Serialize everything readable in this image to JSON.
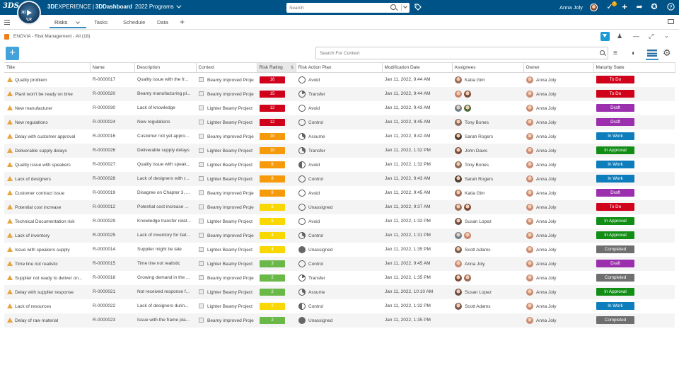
{
  "topbar": {
    "logo": "3DS",
    "compass_3d": "3D",
    "compass_v_r": "V,R",
    "brand_bold_1": "3D",
    "brand_rest_1": "EXPERIENCE",
    "brand_sep": "|",
    "brand_bold_2": "3DDashboard",
    "program": "2022 Programs",
    "search_placeholder": "Search",
    "user_name": "Anna Joly",
    "notif_count": "1"
  },
  "tabs": {
    "risks": "Risks",
    "tasks": "Tasks",
    "schedule": "Schedule",
    "data": "Data",
    "add": "+"
  },
  "widget": {
    "title": "ENOVIA - Risk Management - All (18)"
  },
  "toolbar": {
    "add_label": "+",
    "context_search_placeholder": "Search For Context"
  },
  "columns": {
    "title": "Title",
    "name": "Name",
    "description": "Description",
    "context": "Context",
    "rating": "Risk Rating",
    "plan": "Risk Action Plan",
    "modified": "Modification Date",
    "assignees": "Assignees",
    "owner": "Owner",
    "state": "Maturity State"
  },
  "colors": {
    "rating_red": "#d0021b",
    "rating_orange": "#f59a0a",
    "rating_yellow": "#f8d800",
    "rating_green": "#6ab847",
    "state_todo": "#d0021b",
    "state_draft": "#9b2fae",
    "state_inwork": "#0d7dbb",
    "state_approval": "#128e16",
    "state_completed": "#6f6f6f"
  },
  "rows": [
    {
      "title": "Quality problem",
      "name": "R-0000017",
      "description": "Quality issue with the fr...",
      "context": "Beamy improved Proje",
      "rating": "16",
      "rating_color": "#d0021b",
      "plan": "Avoid",
      "plan_icon": "avoid",
      "modified": "Jan 11, 2022, 9:44 AM",
      "assignees": [
        {
          "color": "#9c6b56"
        }
      ],
      "assignee_name": "Katia Gim",
      "owner": "Anna Joly",
      "state": "To Do",
      "state_color": "#d0021b"
    },
    {
      "title": "Plant won't be ready on time",
      "name": "R-0000020",
      "description": "Beamy manufacturing pl...",
      "context": "Beamy improved Proje",
      "rating": "15",
      "rating_color": "#d0021b",
      "plan": "Transfer",
      "plan_icon": "transfer",
      "modified": "Jan 11, 2022, 9:44 AM",
      "assignees": [
        {
          "color": "#c9856b"
        },
        {
          "color": "#7b4b3a"
        }
      ],
      "assignee_name": "",
      "owner": "Anna Joly",
      "state": "To Do",
      "state_color": "#d0021b"
    },
    {
      "title": "New manufacturer",
      "name": "R-0000030",
      "description": "Lack of knowledge",
      "context": "Lighter Beamy Project",
      "rating": "12",
      "rating_color": "#d0021b",
      "plan": "Avoid",
      "plan_icon": "avoid",
      "modified": "Jan 11, 2022, 9:43 AM",
      "assignees": [
        {
          "color": "#6d7f8c"
        },
        {
          "color": "#4b6b3a"
        }
      ],
      "assignee_name": "",
      "owner": "Anna Joly",
      "state": "Draft",
      "state_color": "#9b2fae"
    },
    {
      "title": "New regulations",
      "name": "R-0000024",
      "description": "New regulations",
      "context": "Lighter Beamy Project",
      "rating": "12",
      "rating_color": "#d0021b",
      "plan": "Control",
      "plan_icon": "avoid",
      "modified": "Jan 11, 2022, 9:45 AM",
      "assignees": [
        {
          "color": "#8a6a5a"
        }
      ],
      "assignee_name": "Tony Bones",
      "owner": "Anna Joly",
      "state": "Draft",
      "state_color": "#9b2fae"
    },
    {
      "title": "Delay with customer approval",
      "name": "R-0000016",
      "description": "Customer not yet appro...",
      "context": "Beamy improved Proje",
      "rating": "10",
      "rating_color": "#f59a0a",
      "plan": "Assume",
      "plan_icon": "assume",
      "modified": "Jan 11, 2022, 9:42 AM",
      "assignees": [
        {
          "color": "#4a3a2f"
        }
      ],
      "assignee_name": "Sarah Rogers",
      "owner": "Anna Joly",
      "state": "In Work",
      "state_color": "#0d7dbb"
    },
    {
      "title": "Deliverable supply delays",
      "name": "R-0000026",
      "description": "Deliverable supply delays",
      "context": "Lighter Beamy Project",
      "rating": "10",
      "rating_color": "#f59a0a",
      "plan": "Transfer",
      "plan_icon": "assume",
      "modified": "Jan 11, 2022, 1:32 PM",
      "assignees": [
        {
          "color": "#7a4e3c"
        }
      ],
      "assignee_name": "John Davis",
      "owner": "Anna Joly",
      "state": "In Approval",
      "state_color": "#128e16"
    },
    {
      "title": "Quality issue with speakers",
      "name": "R-0000027",
      "description": "Quality issue with speak...",
      "context": "Lighter Beamy Project",
      "rating": "8",
      "rating_color": "#f59a0a",
      "plan": "Avoid",
      "plan_icon": "control",
      "modified": "Jan 11, 2022, 1:32 PM",
      "assignees": [
        {
          "color": "#8a6a5a"
        }
      ],
      "assignee_name": "Tony Bones",
      "owner": "Anna Joly",
      "state": "In Work",
      "state_color": "#0d7dbb"
    },
    {
      "title": "Lack of designers",
      "name": "R-0000028",
      "description": "Lack of designers with r...",
      "context": "Lighter Beamy Project",
      "rating": "8",
      "rating_color": "#f59a0a",
      "plan": "Control",
      "plan_icon": "avoid",
      "modified": "Jan 11, 2022, 9:43 AM",
      "assignees": [
        {
          "color": "#4a3a2f"
        }
      ],
      "assignee_name": "Sarah Rogers",
      "owner": "Anna Joly",
      "state": "In Work",
      "state_color": "#0d7dbb"
    },
    {
      "title": "Customer contract issue",
      "name": "R-0000019",
      "description": "Disagree on Chapter 3, ...",
      "context": "Beamy improved Proje",
      "rating": "8",
      "rating_color": "#f59a0a",
      "plan": "Avoid",
      "plan_icon": "avoid",
      "modified": "Jan 11, 2022, 9:45 AM",
      "assignees": [
        {
          "color": "#9c6b56"
        }
      ],
      "assignee_name": "Katia Gim",
      "owner": "Anna Joly",
      "state": "Draft",
      "state_color": "#9b2fae"
    },
    {
      "title": "Potential cost increase",
      "name": "R-0000012",
      "description": "Potential cost increase ...",
      "context": "Beamy improved Proje",
      "rating": "6",
      "rating_color": "#f8d800",
      "plan": "Unassigned",
      "plan_icon": "avoid",
      "modified": "Jan 11, 2022, 9:37 AM",
      "assignees": [
        {
          "color": "#9c6b56"
        },
        {
          "color": "#7b4b3a"
        }
      ],
      "assignee_name": "",
      "owner": "Anna Joly",
      "state": "To Do",
      "state_color": "#d0021b"
    },
    {
      "title": "Technical Documentation risk",
      "name": "R-0000029",
      "description": "Knowledge transfer relat...",
      "context": "Lighter Beamy Project",
      "rating": "6",
      "rating_color": "#f8d800",
      "plan": "Avoid",
      "plan_icon": "avoid",
      "modified": "Jan 11, 2022, 1:32 PM",
      "assignees": [
        {
          "color": "#6a4d44"
        }
      ],
      "assignee_name": "Susan Lopez",
      "owner": "Anna Joly",
      "state": "In Approval",
      "state_color": "#128e16"
    },
    {
      "title": "Lack of inventory",
      "name": "R-0000025",
      "description": "Lack of inventory for bat...",
      "context": "Beamy improved Proje",
      "rating": "4",
      "rating_color": "#f8d800",
      "plan": "Control",
      "plan_icon": "assume",
      "modified": "Jan 11, 2022, 1:31 PM",
      "assignees": [
        {
          "color": "#6d7f8c"
        },
        {
          "color": "#c9856b"
        }
      ],
      "assignee_name": "",
      "owner": "Anna Joly",
      "state": "In Approval",
      "state_color": "#128e16"
    },
    {
      "title": "Issue with speakers supply",
      "name": "R-0000014",
      "description": "Supplier might be late",
      "context": "Lighter Beamy Project",
      "rating": "4",
      "rating_color": "#f8d800",
      "plan": "Unassigned",
      "plan_icon": "unassigned",
      "modified": "Jan 11, 2022, 1:35 PM",
      "assignees": [
        {
          "color": "#7a5a4c"
        }
      ],
      "assignee_name": "Scott Adams",
      "owner": "Anna Joly",
      "state": "Completed",
      "state_color": "#6f6f6f"
    },
    {
      "title": "Time line not realistic",
      "name": "R-0000015",
      "description": "Time line not realistic",
      "context": "Lighter Beamy Project",
      "rating": "3",
      "rating_color": "#6ab847",
      "plan": "Control",
      "plan_icon": "avoid",
      "modified": "Jan 11, 2022, 9:45 AM",
      "assignees": [
        {
          "color": "#c98a72"
        }
      ],
      "assignee_name": "Anna Joly",
      "owner": "Anna Joly",
      "state": "Draft",
      "state_color": "#9b2fae"
    },
    {
      "title": "Supplier not ready to deliver on...",
      "name": "R-0000018",
      "description": "Growing demand in the ...",
      "context": "Beamy improved Proje",
      "rating": "2",
      "rating_color": "#6ab847",
      "plan": "Transfer",
      "plan_icon": "transfer",
      "modified": "Jan 11, 2022, 1:35 PM",
      "assignees": [
        {
          "color": "#7b4b3a"
        },
        {
          "color": "#9c6b56"
        }
      ],
      "assignee_name": "",
      "owner": "Anna Joly",
      "state": "Completed",
      "state_color": "#6f6f6f"
    },
    {
      "title": "Delay with supplier response",
      "name": "R-0000021",
      "description": "Not received response f...",
      "context": "Lighter Beamy Project",
      "rating": "2",
      "rating_color": "#6ab847",
      "plan": "Assume",
      "plan_icon": "assume",
      "modified": "Jan 11, 2022, 10:10 AM",
      "assignees": [
        {
          "color": "#6a4d44"
        }
      ],
      "assignee_name": "Susan Lopez",
      "owner": "Anna Joly",
      "state": "In Approval",
      "state_color": "#128e16"
    },
    {
      "title": "Lack of resources",
      "name": "R-0000022",
      "description": "Lack of designers durin...",
      "context": "Lighter Beamy Project",
      "rating": "2",
      "rating_color": "#f8d800",
      "plan": "Control",
      "plan_icon": "control",
      "modified": "Jan 11, 2022, 1:32 PM",
      "assignees": [
        {
          "color": "#7a5a4c"
        }
      ],
      "assignee_name": "Scott Adams",
      "owner": "Anna Joly",
      "state": "In Work",
      "state_color": "#0d7dbb"
    },
    {
      "title": "Delay of raw material",
      "name": "R-0000023",
      "description": "Issue with the frame pla...",
      "context": "Beamy improved Proje",
      "rating": "2",
      "rating_color": "#6ab847",
      "plan": "Unassigned",
      "plan_icon": "unassigned",
      "modified": "Jan 11, 2022, 1:35 PM",
      "assignees": [],
      "assignee_name": "",
      "owner": "Anna Joly",
      "state": "Completed",
      "state_color": "#6f6f6f"
    }
  ]
}
